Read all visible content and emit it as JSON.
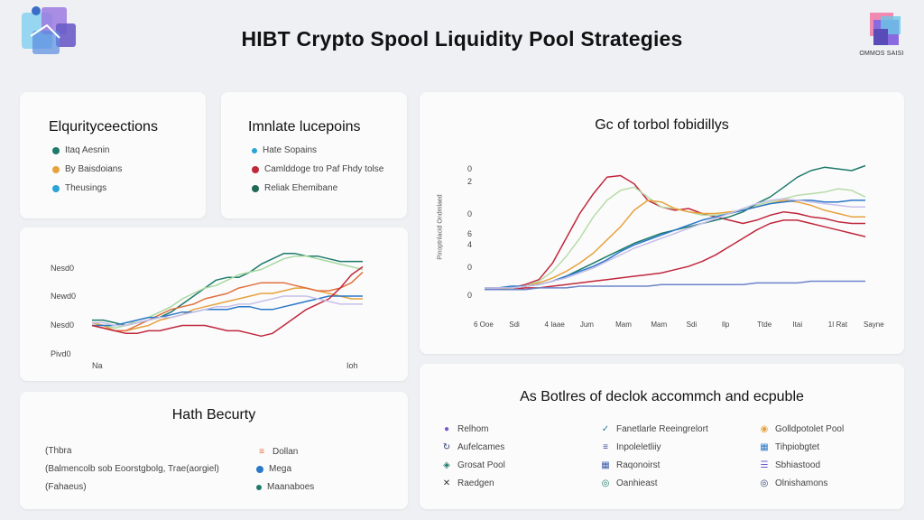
{
  "page": {
    "title": "HIBT Crypto Spool Liquidity Pool Strategies",
    "brand_caption": "OMMOS SAISI"
  },
  "card_top_left": {
    "title": "Elqurityceections",
    "items": [
      {
        "label": "Itaq Aesnin",
        "color": "#1e7a6a"
      },
      {
        "label": "By Baisdoians",
        "color": "#e6a23c"
      },
      {
        "label": "Theusings",
        "color": "#2aa3d6"
      }
    ]
  },
  "card_top_mid": {
    "title": "Imnlate lucepoins",
    "items": [
      {
        "label": "Hate Sopains",
        "color": "#2aa3d6"
      },
      {
        "label": "Camlddoge tro Paf Fhdy tolse",
        "color": "#c0283c"
      },
      {
        "label": "Reliak Ehemibane",
        "color": "#1e6a55"
      }
    ]
  },
  "card_bottom_left": {
    "title": "Hath Becurty",
    "left_items": [
      "(Thbra",
      "(Balmencolb sob Eoorstgbolg, Trae(aorgiel)",
      "(Fahaeus)"
    ],
    "right_items": [
      {
        "label": "Dollan",
        "color": "#e0703c",
        "icon": "≡"
      },
      {
        "label": "Mega",
        "color": "#2a78c8",
        "icon": "●"
      },
      {
        "label": "Maanaboes",
        "color": "#1e7a6a",
        "icon": "●"
      }
    ]
  },
  "card_bottom_right": {
    "title": "As Botlres of declok accommch and ecpuble",
    "columns": [
      [
        {
          "label": "Relhom",
          "icon": "circle-icon",
          "glyph": "●",
          "color": "#7b5cc8"
        },
        {
          "label": "Aufelcames",
          "icon": "refresh-icon",
          "glyph": "↻",
          "color": "#2a3c6e"
        },
        {
          "label": "Grosat Pool",
          "icon": "shield-icon",
          "glyph": "◈",
          "color": "#1e7a6a"
        },
        {
          "label": "Raedgen",
          "icon": "cross-icon",
          "glyph": "✕",
          "color": "#333333"
        }
      ],
      [
        {
          "label": "Fanetlarle Reeingrelort",
          "icon": "check-icon",
          "glyph": "✓",
          "color": "#1e7aa6"
        },
        {
          "label": "Inpoleletliiy",
          "icon": "list-icon",
          "glyph": "≡",
          "color": "#3c4ca0"
        },
        {
          "label": "Raqonoirst",
          "icon": "grid-icon",
          "glyph": "▦",
          "color": "#3c5ca8"
        },
        {
          "label": "Oanhieast",
          "icon": "target-icon",
          "glyph": "◎",
          "color": "#1e7a6a"
        }
      ],
      [
        {
          "label": "Golldpotolet Pool",
          "icon": "circle-icon",
          "glyph": "◉",
          "color": "#e6a23c"
        },
        {
          "label": "Tihpiobgtet",
          "icon": "grid-icon",
          "glyph": "▦",
          "color": "#2a78c8"
        },
        {
          "label": "Sbhiastood",
          "icon": "bars-icon",
          "glyph": "☰",
          "color": "#6a5cc8"
        },
        {
          "label": "Olnishamons",
          "icon": "target-icon",
          "glyph": "◎",
          "color": "#2a3c6e"
        }
      ]
    ]
  },
  "chart_data": [
    {
      "type": "line",
      "ylabels": [
        "Nesd0",
        "Newd0",
        "Nesd0",
        "Pivd0"
      ],
      "xlabels": [
        "Na",
        "Ioh"
      ],
      "x": [
        0,
        1,
        2,
        3,
        4,
        5,
        6,
        7,
        8,
        9,
        10,
        11,
        12,
        13,
        14,
        15,
        16,
        17,
        18,
        19,
        20,
        21,
        22,
        23,
        24
      ],
      "series": [
        {
          "color": "#1e7a6a",
          "values": [
            32,
            32,
            31,
            30,
            31,
            32,
            33,
            35,
            38,
            41,
            44,
            47,
            48,
            48,
            50,
            53,
            55,
            57,
            57,
            56,
            56,
            55,
            54,
            54,
            54
          ]
        },
        {
          "color": "#a8d8a0",
          "values": [
            31,
            30,
            29,
            30,
            32,
            33,
            35,
            37,
            40,
            42,
            44,
            45,
            47,
            49,
            50,
            51,
            53,
            55,
            56,
            56,
            55,
            54,
            53,
            52,
            51
          ]
        },
        {
          "color": "#e6a23c",
          "values": [
            31,
            30,
            28,
            28,
            29,
            30,
            32,
            33,
            34,
            36,
            37,
            38,
            39,
            40,
            41,
            42,
            42,
            43,
            44,
            44,
            43,
            42,
            41,
            40,
            40
          ]
        },
        {
          "color": "#e0703c",
          "values": [
            30,
            29,
            28,
            28,
            30,
            32,
            34,
            36,
            37,
            38,
            40,
            41,
            42,
            44,
            45,
            46,
            46,
            46,
            45,
            44,
            43,
            43,
            44,
            46,
            50
          ]
        },
        {
          "color": "#2a78c8",
          "values": [
            30,
            30,
            30,
            31,
            32,
            33,
            33,
            34,
            35,
            35,
            36,
            36,
            36,
            37,
            37,
            36,
            36,
            37,
            38,
            39,
            40,
            41,
            41,
            41,
            41
          ]
        },
        {
          "color": "#c0283c",
          "values": [
            30,
            29,
            28,
            27,
            27,
            28,
            28,
            29,
            30,
            30,
            30,
            29,
            28,
            28,
            27,
            26,
            27,
            30,
            33,
            36,
            38,
            40,
            44,
            49,
            52
          ]
        },
        {
          "color": "#c8c0e8",
          "values": [
            31,
            31,
            30,
            30,
            31,
            32,
            33,
            33,
            34,
            35,
            36,
            37,
            37,
            38,
            38,
            39,
            40,
            41,
            41,
            41,
            40,
            39,
            38,
            38,
            38
          ]
        }
      ]
    },
    {
      "type": "line",
      "title": "Gc of torbol fobidillys",
      "ylabel": "Pinoptnlacid Ondmlaed",
      "ylabels": [
        "0",
        "2",
        "0",
        "6",
        "4",
        "0",
        "0"
      ],
      "xlabels": [
        "6 Ooe",
        "Sdi",
        "4 Iaae",
        "Jum",
        "Mam",
        "Mam",
        "Sdi",
        "Ilp",
        "Ttde",
        "Itai",
        "1I Rat",
        "Sayne"
      ],
      "x": [
        0,
        1,
        2,
        3,
        4,
        5,
        6,
        7,
        8,
        9,
        10,
        11,
        12,
        13,
        14,
        15,
        16,
        17,
        18,
        19,
        20,
        21,
        22,
        23,
        24,
        25,
        26,
        27,
        28
      ],
      "series": [
        {
          "color": "#c0283c",
          "values": [
            5,
            5,
            5,
            7,
            10,
            20,
            35,
            50,
            62,
            72,
            73,
            68,
            58,
            54,
            52,
            53,
            50,
            48,
            46,
            44,
            46,
            49,
            51,
            50,
            48,
            47,
            45,
            44,
            44
          ]
        },
        {
          "color": "#b8dca8",
          "values": [
            4,
            4,
            5,
            6,
            9,
            15,
            24,
            35,
            48,
            58,
            64,
            66,
            60,
            54,
            53,
            51,
            49,
            49,
            50,
            52,
            55,
            57,
            59,
            61,
            62,
            63,
            65,
            64,
            60
          ]
        },
        {
          "color": "#e6a23c",
          "values": [
            4,
            4,
            5,
            6,
            8,
            11,
            15,
            20,
            26,
            34,
            42,
            52,
            58,
            57,
            53,
            51,
            50,
            50,
            51,
            52,
            54,
            56,
            58,
            57,
            55,
            52,
            50,
            48,
            48
          ]
        },
        {
          "color": "#1e7a6a",
          "values": [
            5,
            5,
            5,
            6,
            7,
            9,
            12,
            16,
            20,
            24,
            28,
            32,
            35,
            38,
            40,
            42,
            44,
            46,
            48,
            51,
            56,
            60,
            66,
            72,
            76,
            78,
            77,
            76,
            79
          ]
        },
        {
          "color": "#2a78c8",
          "values": [
            5,
            5,
            6,
            6,
            7,
            9,
            12,
            15,
            18,
            22,
            27,
            31,
            34,
            37,
            40,
            43,
            46,
            48,
            50,
            52,
            54,
            56,
            57,
            58,
            58,
            57,
            57,
            58,
            58
          ]
        },
        {
          "color": "#c8c0e8",
          "values": [
            5,
            5,
            5,
            6,
            7,
            9,
            11,
            14,
            17,
            21,
            25,
            29,
            32,
            35,
            38,
            41,
            44,
            47,
            50,
            53,
            56,
            58,
            59,
            58,
            57,
            56,
            55,
            54,
            54
          ]
        },
        {
          "color": "#c0283c",
          "values": [
            4,
            4,
            4,
            5,
            5,
            6,
            7,
            8,
            9,
            10,
            11,
            12,
            13,
            14,
            16,
            18,
            21,
            25,
            30,
            35,
            40,
            44,
            46,
            46,
            44,
            42,
            40,
            38,
            36
          ]
        },
        {
          "color": "#6c84c8",
          "values": [
            4,
            4,
            4,
            4,
            5,
            5,
            5,
            6,
            6,
            6,
            6,
            6,
            6,
            7,
            7,
            7,
            7,
            7,
            7,
            7,
            8,
            8,
            8,
            8,
            9,
            9,
            9,
            9,
            9
          ]
        }
      ]
    }
  ]
}
